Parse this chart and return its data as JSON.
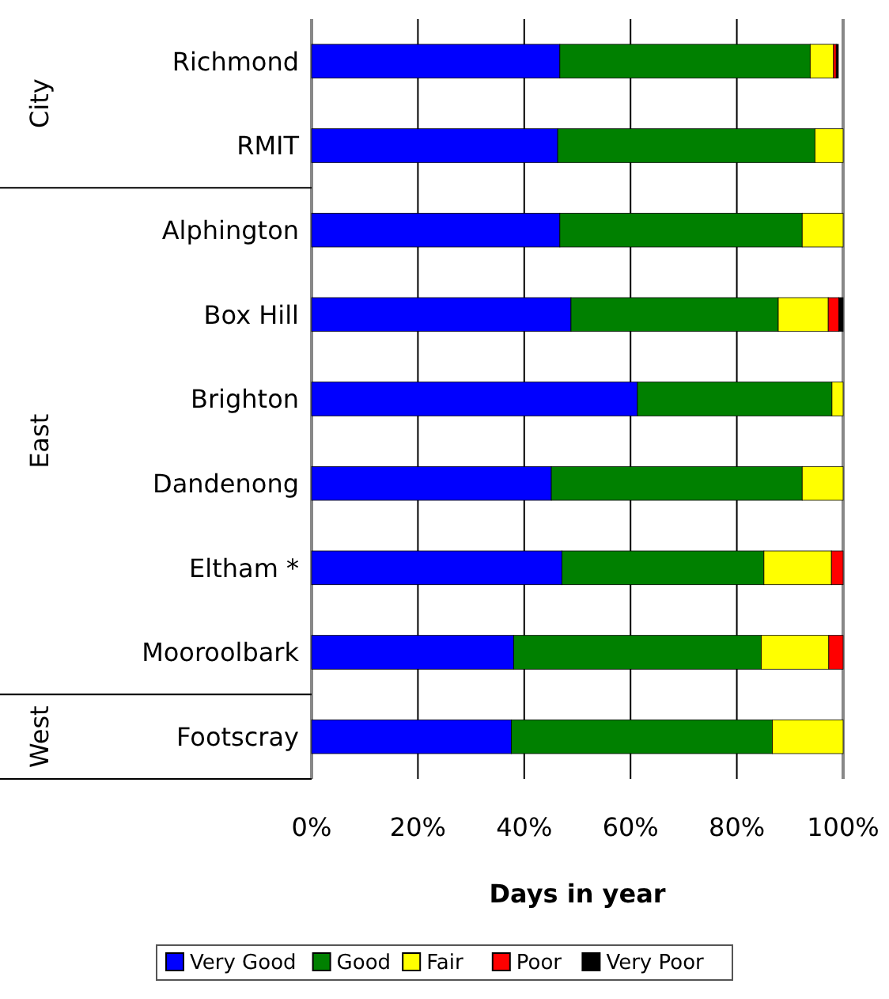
{
  "chart_data": {
    "type": "bar",
    "orientation": "horizontal",
    "stacked": true,
    "categories": [
      "Richmond",
      "RMIT",
      "Alphington",
      "Box Hill",
      "Brighton",
      "Dandenong",
      "Eltham *",
      "Mooroolbark",
      "Footscray"
    ],
    "series": [
      {
        "name": "Very Good",
        "color": "#0000ff",
        "values": [
          46.7,
          46.3,
          46.7,
          48.8,
          61.3,
          45.1,
          47.1,
          38.0,
          37.6
        ]
      },
      {
        "name": "Good",
        "color": "#008000",
        "values": [
          47.1,
          48.4,
          45.6,
          39.0,
          36.6,
          47.2,
          38.0,
          46.6,
          49.1
        ]
      },
      {
        "name": "Fair",
        "color": "#ffff00",
        "values": [
          4.4,
          5.3,
          7.7,
          9.4,
          2.1,
          7.7,
          12.7,
          12.7,
          13.3
        ]
      },
      {
        "name": "Poor",
        "color": "#ff0000",
        "values": [
          0.5,
          0,
          0,
          2.0,
          0,
          0,
          2.2,
          2.7,
          0
        ]
      },
      {
        "name": "Very Poor",
        "color": "#000000",
        "values": [
          0.4,
          0,
          0,
          0.8,
          0,
          0,
          0,
          0,
          0
        ]
      }
    ],
    "xlim": [
      0,
      100
    ],
    "xticks": [
      {
        "value": 0,
        "label": "0%"
      },
      {
        "value": 20,
        "label": "20%"
      },
      {
        "value": 40,
        "label": "40%"
      },
      {
        "value": 60,
        "label": "60%"
      },
      {
        "value": 80,
        "label": "80%"
      },
      {
        "value": 100,
        "label": "100%"
      }
    ],
    "xlabel": "Days in year",
    "annotations": [
      "City",
      "East",
      "West"
    ],
    "grid": "x",
    "legend": "bottom"
  }
}
